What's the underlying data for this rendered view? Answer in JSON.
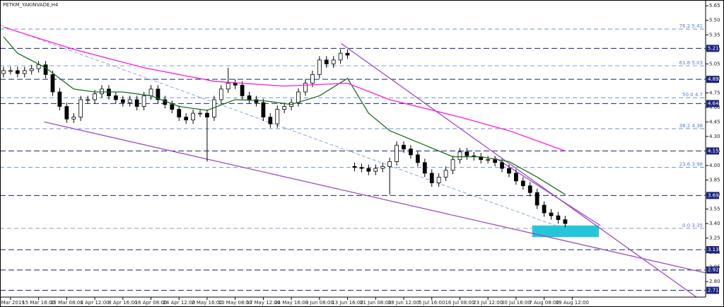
{
  "chart_data": {
    "type": "candlestick",
    "title": "PETKM_YAKINVADE,H4",
    "xlim": [
      -0.5,
      100
    ],
    "ylim": [
      2.64,
      5.71
    ],
    "xticks": [
      {
        "value": 1,
        "label": "8 Mar 2019"
      },
      {
        "value": 5,
        "label": "15 Mar 16:00"
      },
      {
        "value": 9,
        "label": "25 Mar 08:00"
      },
      {
        "value": 13,
        "label": "1 Apr 12:00"
      },
      {
        "value": 17,
        "label": "8 Apr 16:00"
      },
      {
        "value": 21,
        "label": "16 Apr 08:00"
      },
      {
        "value": 25,
        "label": "24 Apr 12:00"
      },
      {
        "value": 29,
        "label": "2 May 16:00"
      },
      {
        "value": 33,
        "label": "10 May 08:00"
      },
      {
        "value": 37,
        "label": "17 May 12:00"
      },
      {
        "value": 41,
        "label": "24 May 16:00"
      },
      {
        "value": 45,
        "label": "3 Jun 08:00"
      },
      {
        "value": 49,
        "label": "13 Jun 16:00"
      },
      {
        "value": 53,
        "label": "21 Jun 08:00"
      },
      {
        "value": 57,
        "label": "28 Jun 12:00"
      },
      {
        "value": 61,
        "label": "5 Jul 16:00"
      },
      {
        "value": 65,
        "label": "16 Jul 08:00"
      },
      {
        "value": 69,
        "label": "23 Jul 12:00"
      },
      {
        "value": 73,
        "label": "30 Jul 16:00"
      },
      {
        "value": 77,
        "label": "7 Aug 08:00"
      },
      {
        "value": 81,
        "label": "19 Aug 12:00"
      }
    ],
    "yticks": [
      5.65,
      {
        "value": 5.5,
        "label": "5.50"
      },
      5.35,
      {
        "value": 5.2,
        "label": "5.20"
      },
      5.05,
      {
        "value": 4.9,
        "label": "4.90"
      },
      4.75,
      {
        "value": 4.6,
        "label": "4.60"
      },
      4.45,
      {
        "value": 4.3,
        "label": "4.30"
      },
      4.15,
      {
        "value": 4.0,
        "label": "4.00"
      },
      3.85,
      {
        "value": 3.7,
        "label": "3.70"
      },
      3.55,
      {
        "value": 3.4,
        "label": "3.40"
      },
      3.25,
      {
        "value": 3.1,
        "label": "3.10"
      },
      2.95,
      {
        "value": 2.8,
        "label": "2.80"
      }
    ],
    "candle_color": "#000000",
    "open": [
      4.95,
      4.98,
      4.98,
      4.95,
      4.98,
      5.0,
      5.04,
      4.94,
      4.76,
      4.61,
      4.48,
      4.5,
      4.68,
      4.68,
      4.74,
      4.79,
      4.72,
      4.68,
      4.65,
      4.68,
      4.61,
      4.72,
      4.79,
      4.68,
      4.63,
      4.58,
      4.5,
      4.47,
      4.54,
      4.54,
      4.5,
      4.68,
      4.79,
      4.85,
      4.83,
      4.72,
      4.68,
      4.65,
      4.5,
      4.43,
      4.58,
      4.61,
      4.65,
      4.76,
      4.85,
      4.94,
      5.09,
      5.05,
      5.09,
      5.16,
      3.99,
      3.98,
      3.97,
      3.94,
      3.97,
      3.99,
      4.04,
      4.21,
      4.17,
      4.11,
      4.03,
      3.92,
      3.82,
      3.88,
      3.95,
      4.06,
      4.14,
      4.1,
      4.09,
      4.06,
      4.06,
      4.03,
      3.97,
      3.92,
      3.84,
      3.79,
      3.72,
      3.59,
      3.51,
      3.48,
      3.44
    ],
    "high": [
      5.02,
      5.02,
      5.02,
      5.02,
      5.04,
      5.08,
      5.08,
      4.98,
      4.8,
      4.65,
      4.54,
      4.72,
      4.72,
      4.78,
      4.83,
      4.83,
      4.76,
      4.72,
      4.72,
      4.72,
      4.76,
      4.83,
      4.83,
      4.72,
      4.67,
      4.62,
      4.54,
      4.58,
      4.58,
      4.58,
      4.72,
      4.83,
      5.01,
      4.89,
      4.87,
      4.76,
      4.72,
      4.69,
      4.54,
      4.62,
      4.65,
      4.69,
      4.8,
      4.89,
      4.98,
      5.13,
      5.13,
      5.13,
      5.2,
      5.2,
      4.03,
      4.02,
      4.01,
      4.01,
      4.03,
      4.08,
      4.25,
      4.25,
      4.21,
      4.15,
      4.07,
      3.96,
      3.92,
      3.99,
      4.1,
      4.18,
      4.18,
      4.14,
      4.13,
      4.1,
      4.1,
      4.07,
      4.01,
      3.96,
      3.88,
      3.83,
      3.76,
      3.63,
      3.55,
      3.52,
      3.48
    ],
    "low": [
      4.91,
      4.94,
      4.91,
      4.91,
      4.94,
      4.96,
      4.9,
      4.72,
      4.57,
      4.44,
      4.44,
      4.46,
      4.64,
      4.64,
      4.7,
      4.68,
      4.64,
      4.61,
      4.61,
      4.57,
      4.57,
      4.68,
      4.64,
      4.59,
      4.54,
      4.46,
      4.43,
      4.43,
      4.5,
      4.04,
      4.46,
      4.64,
      4.75,
      4.79,
      4.68,
      4.64,
      4.61,
      4.46,
      4.39,
      4.39,
      4.54,
      4.57,
      4.61,
      4.72,
      4.81,
      4.9,
      5.01,
      5.01,
      5.05,
      5.1,
      3.94,
      3.93,
      3.9,
      3.9,
      3.93,
      3.7,
      4.0,
      4.13,
      4.07,
      3.99,
      3.88,
      3.78,
      3.78,
      3.84,
      3.91,
      4.02,
      4.06,
      4.05,
      4.02,
      4.02,
      3.99,
      3.93,
      3.88,
      3.8,
      3.75,
      3.68,
      3.55,
      3.47,
      3.44,
      3.4,
      3.36
    ],
    "close": [
      4.98,
      4.98,
      4.95,
      4.98,
      5.0,
      5.04,
      4.94,
      4.76,
      4.61,
      4.48,
      4.5,
      4.68,
      4.68,
      4.74,
      4.79,
      4.72,
      4.68,
      4.65,
      4.68,
      4.61,
      4.72,
      4.79,
      4.68,
      4.63,
      4.58,
      4.5,
      4.47,
      4.54,
      4.54,
      4.5,
      4.68,
      4.79,
      4.85,
      4.83,
      4.72,
      4.68,
      4.65,
      4.5,
      4.43,
      4.58,
      4.61,
      4.65,
      4.76,
      4.85,
      4.94,
      5.09,
      5.05,
      5.09,
      5.16,
      5.14,
      3.98,
      3.97,
      3.94,
      3.97,
      3.99,
      4.04,
      4.21,
      4.17,
      4.11,
      4.03,
      3.92,
      3.82,
      3.88,
      3.95,
      4.06,
      4.14,
      4.1,
      4.09,
      4.06,
      4.06,
      4.03,
      3.97,
      3.92,
      3.84,
      3.79,
      3.72,
      3.59,
      3.51,
      3.48,
      3.44,
      3.4
    ],
    "series": [
      {
        "color": "#1b6b1b",
        "x": [
          0,
          2,
          6,
          10,
          13,
          17,
          21,
          25,
          29,
          33,
          37,
          41,
          45,
          49,
          52,
          55,
          60,
          64,
          68,
          72,
          76,
          80
        ],
        "values": [
          5.33,
          5.16,
          5.01,
          4.79,
          4.76,
          4.76,
          4.72,
          4.61,
          4.57,
          4.68,
          4.67,
          4.63,
          4.72,
          4.9,
          4.54,
          4.36,
          4.21,
          4.09,
          4.09,
          4.04,
          3.88,
          3.7
        ]
      },
      {
        "color": "#ff1ad9",
        "x": [
          0,
          10,
          20,
          30,
          40,
          49,
          55,
          65,
          72,
          80
        ],
        "values": [
          5.43,
          5.2,
          5.01,
          4.87,
          4.82,
          4.85,
          4.68,
          4.5,
          4.36,
          4.15
        ]
      }
    ],
    "trendlines": [
      {
        "color": "#9b4dca",
        "x": [
          5.8,
          100
        ],
        "values": [
          4.45,
          2.89
        ]
      },
      {
        "color": "#9b4dca",
        "x": [
          48.1,
          98.7
        ],
        "values": [
          5.26,
          2.64
        ]
      },
      {
        "color": "#9b4dca",
        "x": [
          70,
          85
        ],
        "values": [
          4.08,
          3.38
        ]
      },
      {
        "color": "#7a9fd6",
        "x": [
          -0.5,
          79
        ],
        "values": [
          5.45,
          3.37
        ],
        "dashed": true
      }
    ],
    "levels": [
      5.21,
      4.89,
      4.64,
      4.15,
      3.69,
      3.13,
      2.92,
      2.71
    ],
    "level_color": "#1a237e",
    "fibo_color": "#5b7fd1",
    "fibo": [
      {
        "ratio": "76.2",
        "value": 5.41
      },
      {
        "ratio": "61.8",
        "value": 5.03
      },
      {
        "ratio": "50.0",
        "value": 4.7
      },
      {
        "ratio": "38.2",
        "value": 4.38
      },
      {
        "ratio": "23.6",
        "value": 3.98
      },
      {
        "ratio": "0.0",
        "value": 3.35
      }
    ],
    "zone": {
      "xlim": [
        75.3,
        84.8
      ],
      "ylim": [
        3.26,
        3.38
      ],
      "color": "#26c6da"
    }
  }
}
